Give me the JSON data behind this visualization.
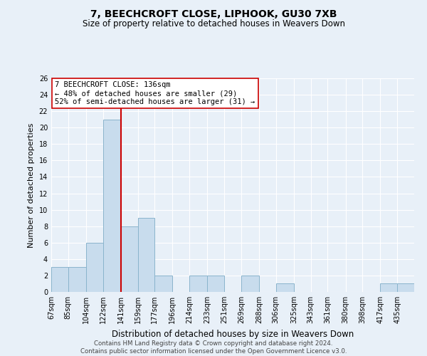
{
  "title": "7, BEECHCROFT CLOSE, LIPHOOK, GU30 7XB",
  "subtitle": "Size of property relative to detached houses in Weavers Down",
  "xlabel": "Distribution of detached houses by size in Weavers Down",
  "ylabel": "Number of detached properties",
  "bin_labels": [
    "67sqm",
    "85sqm",
    "104sqm",
    "122sqm",
    "141sqm",
    "159sqm",
    "177sqm",
    "196sqm",
    "214sqm",
    "233sqm",
    "251sqm",
    "269sqm",
    "288sqm",
    "306sqm",
    "325sqm",
    "343sqm",
    "361sqm",
    "380sqm",
    "398sqm",
    "417sqm",
    "435sqm"
  ],
  "bin_edges": [
    67,
    85,
    104,
    122,
    141,
    159,
    177,
    196,
    214,
    233,
    251,
    269,
    288,
    306,
    325,
    343,
    361,
    380,
    398,
    417,
    435,
    453
  ],
  "counts": [
    3,
    3,
    6,
    21,
    8,
    9,
    2,
    0,
    2,
    2,
    0,
    2,
    0,
    1,
    0,
    0,
    0,
    0,
    0,
    1,
    1
  ],
  "bar_color": "#c8dced",
  "bar_edge_color": "#8ab4cc",
  "vline_x": 141,
  "vline_color": "#cc0000",
  "annotation_line1": "7 BEECHCROFT CLOSE: 136sqm",
  "annotation_line2": "← 48% of detached houses are smaller (29)",
  "annotation_line3": "52% of semi-detached houses are larger (31) →",
  "annotation_box_edgecolor": "#cc0000",
  "annotation_box_facecolor": "white",
  "ylim": [
    0,
    26
  ],
  "yticks": [
    0,
    2,
    4,
    6,
    8,
    10,
    12,
    14,
    16,
    18,
    20,
    22,
    24,
    26
  ],
  "background_color": "#e8f0f8",
  "grid_color": "#ffffff",
  "footer_line1": "Contains HM Land Registry data © Crown copyright and database right 2024.",
  "footer_line2": "Contains public sector information licensed under the Open Government Licence v3.0.",
  "title_fontsize": 10,
  "subtitle_fontsize": 8.5,
  "ylabel_fontsize": 8,
  "xlabel_fontsize": 8.5,
  "tick_fontsize": 7,
  "footer_fontsize": 6.2
}
